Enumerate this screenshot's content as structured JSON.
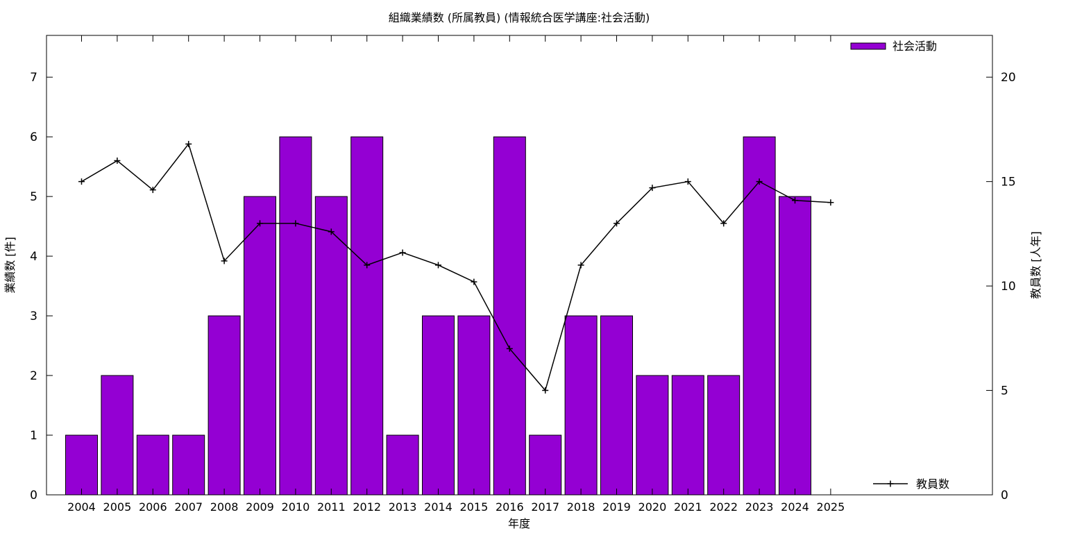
{
  "chart_data": {
    "type": "bar",
    "title": "組織業績数 (所属教員) (情報統合医学講座:社会活動)",
    "xlabel": "年度",
    "ylabel": "業績数 [件]",
    "y2label": "教員数 [人年]",
    "categories": [
      "2004",
      "2005",
      "2006",
      "2007",
      "2008",
      "2009",
      "2010",
      "2011",
      "2012",
      "2013",
      "2014",
      "2015",
      "2016",
      "2017",
      "2018",
      "2019",
      "2020",
      "2021",
      "2022",
      "2023",
      "2024",
      "2025"
    ],
    "ylim": [
      0,
      7.7
    ],
    "yticks": [
      0,
      1,
      2,
      3,
      4,
      5,
      6,
      7
    ],
    "y2lim": [
      0,
      22
    ],
    "y2ticks": [
      0,
      5,
      10,
      15,
      20
    ],
    "grid": false,
    "series": [
      {
        "name": "社会活動",
        "type": "bar",
        "axis": "left",
        "color": "#9400d3",
        "legend_position": "top-right",
        "values": [
          1,
          2,
          1,
          1,
          3,
          5,
          6,
          5,
          6,
          1,
          3,
          3,
          6,
          1,
          3,
          3,
          2,
          2,
          2,
          6,
          5,
          null
        ]
      },
      {
        "name": "教員数",
        "type": "line",
        "axis": "right",
        "color": "#000000",
        "marker": "plus",
        "legend_position": "bottom-right",
        "values": [
          15,
          16,
          14.6,
          16.8,
          11.2,
          13,
          13,
          12.6,
          11,
          11.6,
          11,
          10.2,
          7,
          5,
          11,
          13,
          14.7,
          15,
          13,
          15,
          14.1,
          14
        ]
      }
    ]
  }
}
